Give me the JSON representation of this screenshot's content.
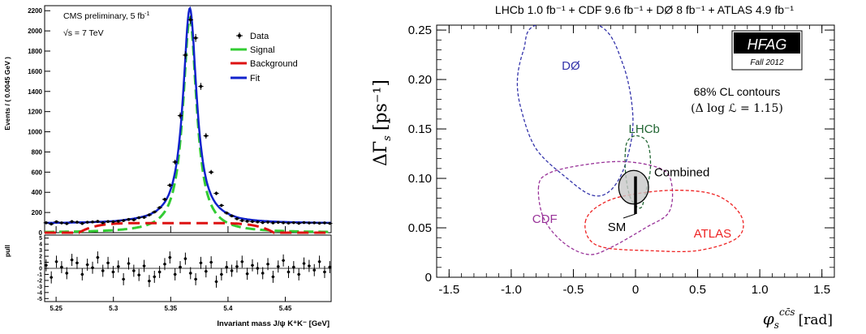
{
  "chart_data": [
    {
      "type": "scatter",
      "title": "CMS preliminary, 5 fb",
      "title_sup": "-1",
      "energy_label": "√s = 7 TeV",
      "xlabel": "Invariant mass J/ψ K⁺K⁻ [GeV]",
      "ylabel": "Events / ( 0.0045 GeV )",
      "xlim": [
        5.24,
        5.49
      ],
      "ylim": [
        0,
        2250
      ],
      "x_ticks": [
        5.25,
        5.3,
        5.35,
        5.4,
        5.45
      ],
      "x_tick_labels": [
        "5.25",
        "5.3",
        "5.35",
        "5.4",
        "5.45"
      ],
      "y_ticks": [
        0,
        200,
        400,
        600,
        800,
        1000,
        1200,
        1400,
        1600,
        1800,
        2000,
        2200
      ],
      "y_tick_labels": [
        "0",
        "200",
        "400",
        "600",
        "800",
        "1000",
        "1200",
        "1400",
        "1600",
        "1800",
        "2000",
        "2200"
      ],
      "legend_position": "top-right",
      "legend": [
        {
          "name": "Data",
          "kind": "marker",
          "color": "#000000"
        },
        {
          "name": "Signal",
          "kind": "line",
          "color": "#33cc33"
        },
        {
          "name": "Background",
          "kind": "line",
          "color": "#dd1111"
        },
        {
          "name": "Fit",
          "kind": "line",
          "color": "#1122cc"
        }
      ],
      "model": {
        "signal_peak": 2130,
        "signal_mean": 5.3667,
        "signal_width": 0.0072,
        "background_level": 95,
        "background_range": [
          5.27,
          5.44
        ],
        "baseline_outside": 90
      },
      "data_x": [
        5.2413,
        5.2458,
        5.2503,
        5.2548,
        5.2593,
        5.2638,
        5.2683,
        5.2728,
        5.2773,
        5.2818,
        5.2863,
        5.2908,
        5.2953,
        5.2998,
        5.3043,
        5.3088,
        5.3133,
        5.3178,
        5.3223,
        5.3268,
        5.3313,
        5.3358,
        5.3403,
        5.3448,
        5.3493,
        5.3538,
        5.3583,
        5.3628,
        5.3673,
        5.3718,
        5.3763,
        5.3808,
        5.3853,
        5.3898,
        5.3943,
        5.3988,
        5.4033,
        5.4078,
        5.4123,
        5.4168,
        5.4213,
        5.4258,
        5.4303,
        5.4348,
        5.4393,
        5.4438,
        5.4483,
        5.4528,
        5.4573,
        5.4618,
        5.4663,
        5.4708,
        5.4753,
        5.4798,
        5.4843,
        5.4888
      ],
      "data_y": [
        98,
        86,
        108,
        97,
        90,
        110,
        104,
        91,
        103,
        106,
        112,
        98,
        110,
        108,
        113,
        120,
        131,
        128,
        148,
        152,
        176,
        205,
        248,
        330,
        470,
        700,
        1160,
        1760,
        2110,
        1930,
        1450,
        960,
        600,
        390,
        270,
        195,
        166,
        138,
        120,
        113,
        110,
        106,
        100,
        104,
        97,
        102,
        98,
        95,
        99,
        93,
        100,
        96,
        98,
        94,
        97,
        92
      ],
      "pull_panel": {
        "ylabel": "pull",
        "ylim": [
          -5.5,
          5.5
        ],
        "y_ticks": [
          -5,
          -4,
          -3,
          -2,
          -1,
          0,
          1,
          2,
          3,
          4,
          5
        ],
        "y_tick_labels": [
          "-5",
          "-4",
          "-3",
          "-2",
          "-1",
          "0",
          "1",
          "2",
          "3",
          "4",
          "5"
        ],
        "values": [
          0.5,
          -1.5,
          1.1,
          0.2,
          -0.8,
          1.4,
          0.9,
          -1.0,
          0.6,
          0.1,
          1.8,
          -0.4,
          0.9,
          -0.6,
          0.3,
          -1.8,
          0.8,
          -0.4,
          -1.1,
          0.4,
          -2.1,
          -1.4,
          -0.6,
          0.7,
          1.8,
          -1.0,
          0.2,
          1.6,
          -0.8,
          -1.8,
          0.9,
          -0.5,
          1.0,
          -2.2,
          -1.0,
          0.2,
          -0.4,
          0.3,
          1.1,
          -0.9,
          0.5,
          0.0,
          -0.8,
          0.7,
          -1.4,
          0.3,
          1.3,
          -0.6,
          0.2,
          -1.0,
          0.8,
          0.4,
          -0.3,
          1.1,
          -0.6,
          0.2
        ]
      }
    },
    {
      "type": "contour",
      "title": "LHCb 1.0 fb⁻¹ + CDF 9.6 fb⁻¹ + DØ 8 fb⁻¹ + ATLAS 4.9 fb⁻¹",
      "xlabel": "φ_s^{cc̄s} [rad]",
      "xlabel_main": "φ",
      "xlabel_sub": "s",
      "xlabel_sup": "cc̄s",
      "xlabel_unit": "[rad]",
      "ylabel": "ΔΓ_s [ps⁻¹]",
      "ylabel_main": "ΔΓ",
      "ylabel_sub": "s",
      "ylabel_unit": "[ps⁻¹]",
      "xlim": [
        -1.6,
        1.6
      ],
      "ylim": [
        0,
        0.255
      ],
      "x_ticks": [
        -1.5,
        -1.0,
        -0.5,
        0,
        0.5,
        1.0,
        1.5
      ],
      "x_tick_labels": [
        "-1.5",
        "-1.0",
        "-0.5",
        "0",
        "0.5",
        "1.0",
        "1.5"
      ],
      "y_ticks": [
        0,
        0.05,
        0.1,
        0.15,
        0.2,
        0.25
      ],
      "y_tick_labels": [
        "0",
        "0.05",
        "0.10",
        "0.15",
        "0.20",
        "0.25"
      ],
      "badge": {
        "name": "HFAG",
        "sub": "Fall 2012"
      },
      "note_line1": "68% CL contours",
      "note_line2": "(Δ log ℒ = 1.15)",
      "contours": [
        {
          "name": "DØ",
          "color": "#3333aa",
          "points": [
            [
              -0.8,
              0.255
            ],
            [
              -0.9,
              0.23
            ],
            [
              -0.95,
              0.2
            ],
            [
              -0.92,
              0.17
            ],
            [
              -0.8,
              0.13
            ],
            [
              -0.55,
              0.1
            ],
            [
              -0.35,
              0.083
            ],
            [
              -0.2,
              0.088
            ],
            [
              -0.08,
              0.115
            ],
            [
              -0.02,
              0.16
            ],
            [
              -0.1,
              0.215
            ],
            [
              -0.3,
              0.255
            ]
          ],
          "label_x": -0.52,
          "label_y": 0.21
        },
        {
          "name": "LHCb",
          "color": "#226633",
          "points": [
            [
              -0.08,
              0.13
            ],
            [
              -0.08,
              0.105
            ],
            [
              -0.04,
              0.08
            ],
            [
              0.04,
              0.07
            ],
            [
              0.08,
              0.085
            ],
            [
              0.12,
              0.11
            ],
            [
              0.1,
              0.135
            ],
            [
              0.02,
              0.143
            ],
            [
              -0.05,
              0.14
            ]
          ],
          "label_x": 0.07,
          "label_y": 0.146
        },
        {
          "name": "CDF",
          "color": "#993399",
          "points": [
            [
              -0.78,
              0.092
            ],
            [
              -0.74,
              0.06
            ],
            [
              -0.58,
              0.035
            ],
            [
              -0.38,
              0.023
            ],
            [
              -0.2,
              0.03
            ],
            [
              0.08,
              0.05
            ],
            [
              0.27,
              0.066
            ],
            [
              0.29,
              0.095
            ],
            [
              0.2,
              0.11
            ],
            [
              -0.1,
              0.117
            ],
            [
              -0.45,
              0.113
            ],
            [
              -0.7,
              0.105
            ]
          ],
          "label_x": -0.73,
          "label_y": 0.055
        },
        {
          "name": "ATLAS",
          "color": "#ee2222",
          "points": [
            [
              -0.4,
              0.058
            ],
            [
              -0.38,
              0.04
            ],
            [
              -0.25,
              0.03
            ],
            [
              0.1,
              0.027
            ],
            [
              0.5,
              0.027
            ],
            [
              0.82,
              0.04
            ],
            [
              0.85,
              0.062
            ],
            [
              0.65,
              0.083
            ],
            [
              0.3,
              0.088
            ],
            [
              -0.1,
              0.082
            ],
            [
              -0.3,
              0.072
            ]
          ],
          "label_x": 0.62,
          "label_y": 0.04
        },
        {
          "name": "Combined",
          "color": "#000000",
          "fill": "#c8c8c8",
          "ellipse": {
            "cx": -0.015,
            "cy": 0.091,
            "rx": 0.12,
            "ry": 0.017
          },
          "label_x": 0.15,
          "label_y": 0.102
        }
      ],
      "sm": {
        "name": "SM",
        "x": 0.0,
        "y": 0.087,
        "y_low": 0.064,
        "y_high": 0.102,
        "label_x": -0.15,
        "label_y": 0.05
      }
    }
  ]
}
